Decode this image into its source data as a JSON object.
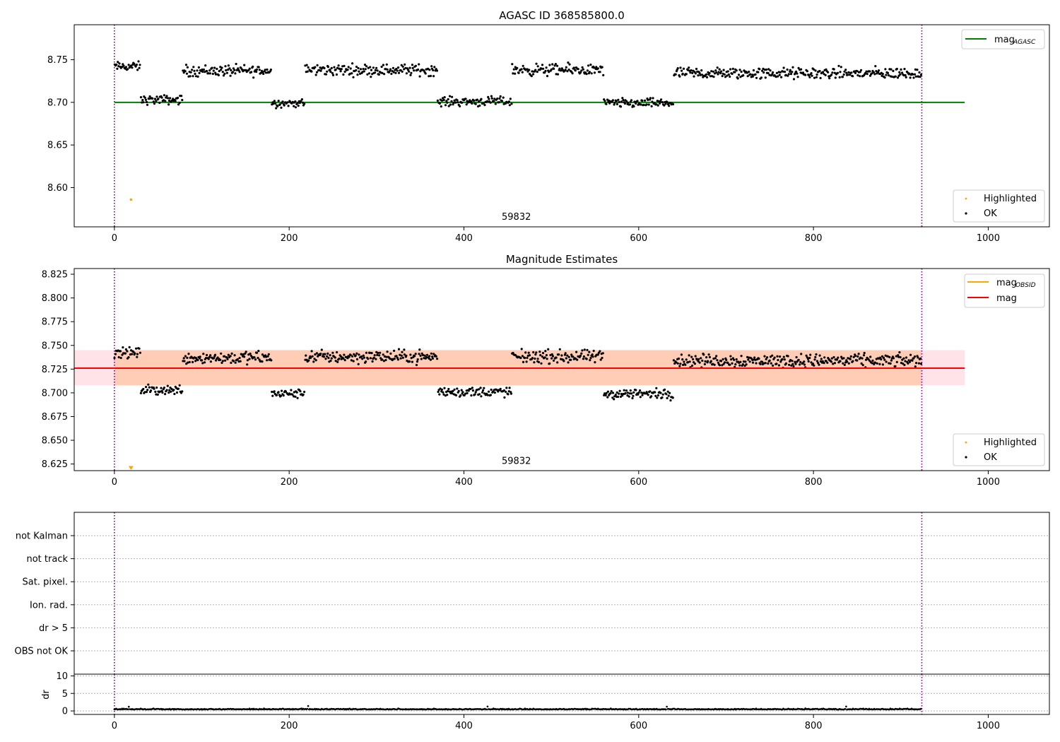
{
  "chart_data": [
    {
      "type": "scatter",
      "title": "AGASC ID 368585800.0",
      "xlabel": "",
      "ylabel": "",
      "xlim": [
        -46,
        1070
      ],
      "ylim": [
        8.554,
        8.791
      ],
      "xticks": [
        "0",
        "200",
        "400",
        "600",
        "800",
        "1000"
      ],
      "yticks": [
        "8.60",
        "8.65",
        "8.70",
        "8.75"
      ],
      "grid": false,
      "vlines": [
        0,
        924
      ],
      "annotations": [
        {
          "text": "59832",
          "x": 460,
          "y": 8.559
        }
      ],
      "lines": [
        {
          "name": "mag_AGASC",
          "y": 8.7,
          "x_range": [
            0,
            973
          ],
          "color": "#008000"
        }
      ],
      "legend_upper": {
        "placement": "top-right",
        "entries": [
          {
            "label": "mag",
            "sub": "AGASC",
            "color": "#008000"
          }
        ]
      },
      "legend_lower": {
        "placement": "bottom-right",
        "entries": [
          {
            "label": "Highlighted",
            "color": "#ffa500"
          },
          {
            "label": "OK",
            "color": "#000000"
          }
        ]
      },
      "series": [
        {
          "name": "Highlighted",
          "color": "#ffa500",
          "x": [
            19
          ],
          "y": [
            8.586
          ]
        },
        {
          "name": "OK",
          "color": "#000000",
          "segments": [
            {
              "x": [
                0,
                30
              ],
              "y": 8.742,
              "spread": 0.008
            },
            {
              "x": [
                30,
                78
              ],
              "y": 8.703,
              "spread": 0.008
            },
            {
              "x": [
                78,
                180
              ],
              "y": 8.737,
              "spread": 0.01
            },
            {
              "x": [
                180,
                218
              ],
              "y": 8.699,
              "spread": 0.007
            },
            {
              "x": [
                218,
                370
              ],
              "y": 8.738,
              "spread": 0.01
            },
            {
              "x": [
                370,
                455
              ],
              "y": 8.701,
              "spread": 0.008
            },
            {
              "x": [
                455,
                560
              ],
              "y": 8.738,
              "spread": 0.01
            },
            {
              "x": [
                560,
                640
              ],
              "y": 8.699,
              "spread": 0.008
            },
            {
              "x": [
                640,
                924
              ],
              "y": 8.734,
              "spread": 0.01
            }
          ]
        }
      ]
    },
    {
      "type": "scatter",
      "title": "Magnitude Estimates",
      "xlabel": "",
      "ylabel": "",
      "xlim": [
        -46,
        1070
      ],
      "ylim": [
        8.618,
        8.831
      ],
      "xticks": [
        "0",
        "200",
        "400",
        "600",
        "800",
        "1000"
      ],
      "yticks": [
        "8.625",
        "8.650",
        "8.675",
        "8.700",
        "8.725",
        "8.750",
        "8.775",
        "8.800",
        "8.825"
      ],
      "grid": false,
      "vlines": [
        0,
        924
      ],
      "annotations": [
        {
          "text": "59832",
          "x": 460,
          "y": 8.622
        }
      ],
      "bands": [
        {
          "name": "mag band",
          "y_range": [
            8.708,
            8.745
          ],
          "x_range": [
            -46,
            973
          ],
          "color": "#ffc0cb"
        },
        {
          "name": "mag_OBSID band",
          "y_range": [
            8.708,
            8.745
          ],
          "x_range": [
            0,
            924
          ],
          "color": "#ffb07a"
        }
      ],
      "lines": [
        {
          "name": "mag_OBSID",
          "y": 8.726,
          "x_range": [
            0,
            924
          ],
          "color": "#ffa500"
        },
        {
          "name": "mag",
          "y": 8.726,
          "x_range": [
            -46,
            973
          ],
          "color": "#ff0000"
        }
      ],
      "legend_upper": {
        "placement": "top-right",
        "entries": [
          {
            "label": "mag",
            "sub": "OBSID",
            "color": "#ffa500"
          },
          {
            "label": "mag",
            "sub": "",
            "color": "#ff0000"
          }
        ]
      },
      "legend_lower": {
        "placement": "bottom-right",
        "entries": [
          {
            "label": "Highlighted",
            "color": "#ffa500"
          },
          {
            "label": "OK",
            "color": "#000000"
          }
        ]
      },
      "series": [
        {
          "name": "Highlighted",
          "color": "#ffa500",
          "marker": "triangle-down",
          "x": [
            19
          ],
          "y": [
            8.621
          ]
        },
        {
          "name": "OK",
          "color": "#000000",
          "segments": [
            {
              "x": [
                0,
                30
              ],
              "y": 8.742,
              "spread": 0.008
            },
            {
              "x": [
                30,
                78
              ],
              "y": 8.703,
              "spread": 0.008
            },
            {
              "x": [
                78,
                180
              ],
              "y": 8.737,
              "spread": 0.01
            },
            {
              "x": [
                180,
                218
              ],
              "y": 8.699,
              "spread": 0.007
            },
            {
              "x": [
                218,
                370
              ],
              "y": 8.738,
              "spread": 0.01
            },
            {
              "x": [
                370,
                455
              ],
              "y": 8.701,
              "spread": 0.008
            },
            {
              "x": [
                455,
                560
              ],
              "y": 8.738,
              "spread": 0.01
            },
            {
              "x": [
                560,
                640
              ],
              "y": 8.699,
              "spread": 0.008
            },
            {
              "x": [
                640,
                924
              ],
              "y": 8.734,
              "spread": 0.01
            }
          ]
        }
      ]
    },
    {
      "type": "scatter",
      "title": "",
      "xlabel": "",
      "ylabel": "",
      "xlim": [
        -46,
        1070
      ],
      "categories": [
        "not Kalman",
        "not track",
        "Sat. pixel.",
        "Ion. rad.",
        "dr > 5",
        "OBS not OK"
      ],
      "grid": true,
      "vlines": [
        0,
        924
      ]
    },
    {
      "type": "scatter",
      "title": "",
      "xlabel": "",
      "ylabel": "dr",
      "xlim": [
        -46,
        1070
      ],
      "ylim": [
        -1,
        10.5
      ],
      "xticks": [
        "0",
        "200",
        "400",
        "600",
        "800",
        "1000"
      ],
      "yticks": [
        "0",
        "5",
        "10"
      ],
      "grid": true,
      "vlines": [
        0,
        924
      ],
      "series": [
        {
          "name": "dr",
          "color": "#000000",
          "segments": [
            {
              "x": [
                0,
                924
              ],
              "y": 0.4,
              "spread": 0.35
            }
          ]
        }
      ]
    }
  ]
}
